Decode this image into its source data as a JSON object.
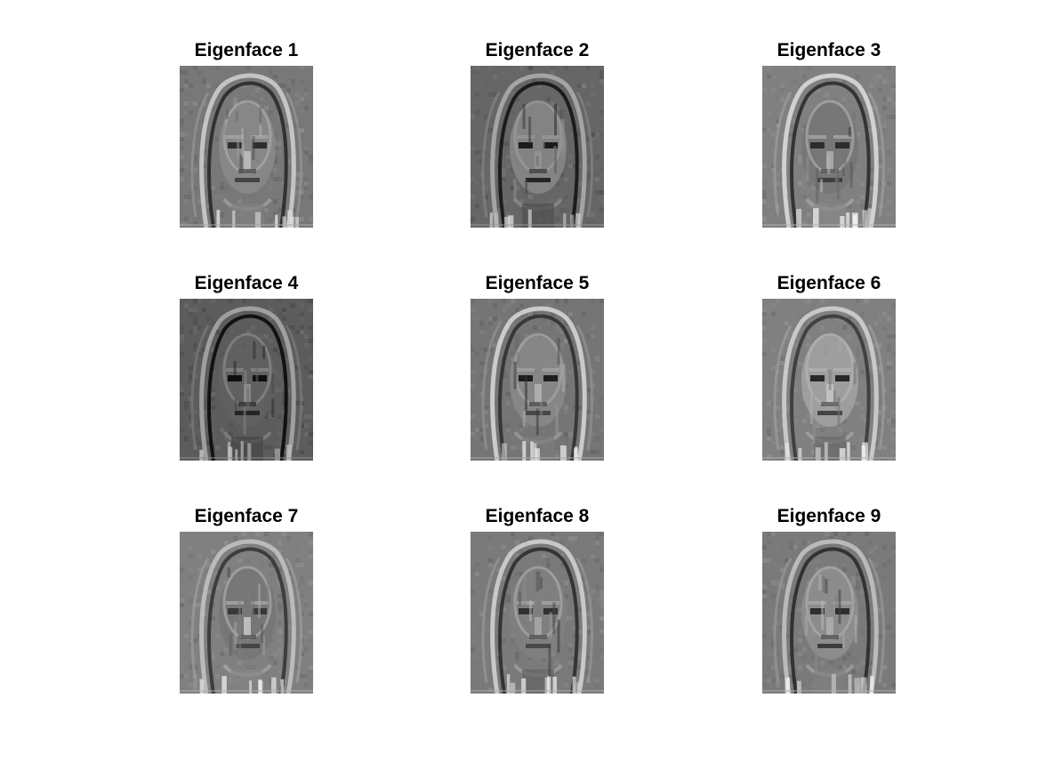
{
  "figure": {
    "subplots": [
      {
        "title": "Eigenface 1",
        "image": "eigenface-grayscale",
        "tone": 0.47
      },
      {
        "title": "Eigenface 2",
        "image": "eigenface-grayscale",
        "tone": 0.4
      },
      {
        "title": "Eigenface 3",
        "image": "eigenface-grayscale",
        "tone": 0.5
      },
      {
        "title": "Eigenface 4",
        "image": "eigenface-grayscale",
        "tone": 0.36
      },
      {
        "title": "Eigenface 5",
        "image": "eigenface-grayscale",
        "tone": 0.46
      },
      {
        "title": "Eigenface 6",
        "image": "eigenface-grayscale",
        "tone": 0.5
      },
      {
        "title": "Eigenface 7",
        "image": "eigenface-grayscale",
        "tone": 0.5
      },
      {
        "title": "Eigenface 8",
        "image": "eigenface-grayscale",
        "tone": 0.48
      },
      {
        "title": "Eigenface 9",
        "image": "eigenface-grayscale",
        "tone": 0.48
      }
    ]
  }
}
